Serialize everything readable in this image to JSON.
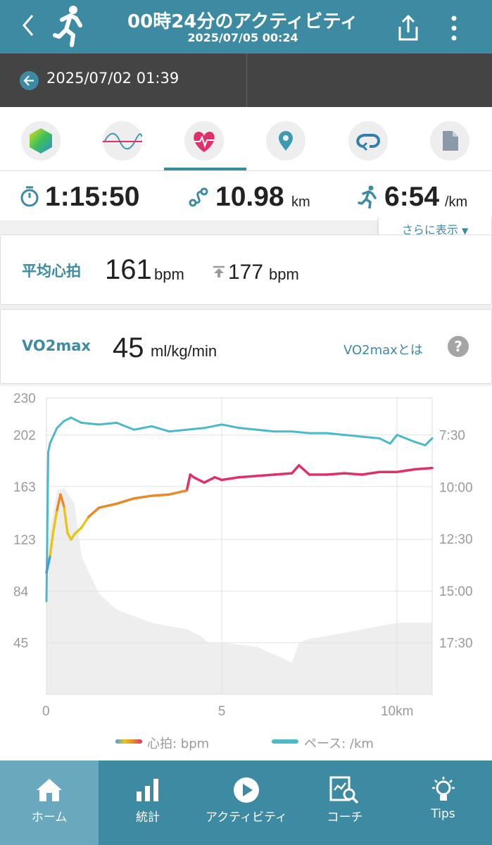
{
  "header": {
    "title": "00時24分のアクティビティ",
    "subtitle": "2025/07/05 00:24"
  },
  "previous": {
    "date": "2025/07/02 01:39"
  },
  "tabs": [
    {
      "name": "summary",
      "icon": "hexagon-icon"
    },
    {
      "name": "wave",
      "icon": "wave-icon"
    },
    {
      "name": "heart",
      "icon": "heart-icon",
      "active": true
    },
    {
      "name": "map",
      "icon": "map-pin-icon"
    },
    {
      "name": "laps",
      "icon": "loop-icon"
    },
    {
      "name": "memo",
      "icon": "document-icon"
    }
  ],
  "stats": {
    "time": "1:15:50",
    "distance": "10.98",
    "distance_unit": "km",
    "pace": "6:54",
    "pace_unit": "/km",
    "more_label": "さらに表示"
  },
  "heart_rate": {
    "label": "平均心拍",
    "avg": "161",
    "avg_unit": "bpm",
    "max": "177",
    "max_unit": "bpm"
  },
  "vo2": {
    "label": "VO2max",
    "value": "45",
    "unit": "ml/kg/min",
    "link": "VO2maxとは",
    "help": "?"
  },
  "colors": {
    "accent": "#3d8ba3",
    "pace_line": "#4bbac8",
    "hr_low": "#3fa0d8",
    "hr_mid": "#e8c51c",
    "hr_high": "#e0306a",
    "elevation": "#eeeeee"
  },
  "chart_data": {
    "type": "line",
    "x_ticks": [
      "0",
      "5",
      "10km"
    ],
    "xlim": [
      0,
      11
    ],
    "y_left_ticks": [
      "230",
      "202",
      "163",
      "123",
      "84",
      "45"
    ],
    "y_left_range": [
      6,
      230
    ],
    "y_right_ticks": [
      "7:30",
      "10:00",
      "12:30",
      "15:00",
      "17:30"
    ],
    "legend": [
      "心拍: bpm",
      "ペース: /km"
    ],
    "series": [
      {
        "name": "心拍: bpm",
        "x": [
          0.0,
          0.1,
          0.2,
          0.3,
          0.4,
          0.5,
          0.6,
          0.7,
          0.8,
          1.0,
          1.2,
          1.5,
          2.0,
          2.5,
          3.0,
          3.5,
          4.0,
          4.1,
          4.2,
          4.5,
          4.8,
          5.0,
          5.5,
          6.0,
          6.5,
          7.0,
          7.2,
          7.5,
          8.0,
          8.5,
          9.0,
          9.5,
          10.0,
          10.5,
          11.0
        ],
        "values": [
          98,
          110,
          130,
          145,
          157,
          148,
          128,
          123,
          127,
          132,
          140,
          147,
          150,
          154,
          156,
          157,
          160,
          172,
          170,
          166,
          170,
          168,
          170,
          171,
          172,
          173,
          179,
          172,
          172,
          173,
          172,
          174,
          174,
          176,
          177
        ]
      },
      {
        "name": "ペース: /km",
        "x": [
          0.0,
          0.05,
          0.1,
          0.3,
          0.5,
          0.7,
          1.0,
          1.5,
          2.0,
          2.5,
          3.0,
          3.5,
          4.0,
          4.5,
          5.0,
          5.5,
          6.0,
          6.5,
          7.0,
          7.5,
          8.0,
          8.5,
          9.0,
          9.5,
          9.8,
          10.0,
          10.5,
          10.8,
          11.0
        ],
        "values": [
          "15:30",
          "8:20",
          "7:55",
          "7:10",
          "6:50",
          "6:40",
          "6:55",
          "7:00",
          "6:55",
          "7:15",
          "7:05",
          "7:20",
          "7:15",
          "7:10",
          "7:00",
          "7:10",
          "7:15",
          "7:20",
          "7:20",
          "7:25",
          "7:25",
          "7:30",
          "7:35",
          "7:40",
          "7:55",
          "7:30",
          "7:50",
          "8:00",
          "7:40"
        ]
      }
    ]
  },
  "nav": [
    {
      "label": "ホーム",
      "icon": "home-icon",
      "active": true
    },
    {
      "label": "統計",
      "icon": "bar-chart-icon"
    },
    {
      "label": "アクティビティ",
      "icon": "play-icon"
    },
    {
      "label": "コーチ",
      "icon": "coach-icon"
    },
    {
      "label": "Tips",
      "icon": "lightbulb-icon"
    }
  ]
}
